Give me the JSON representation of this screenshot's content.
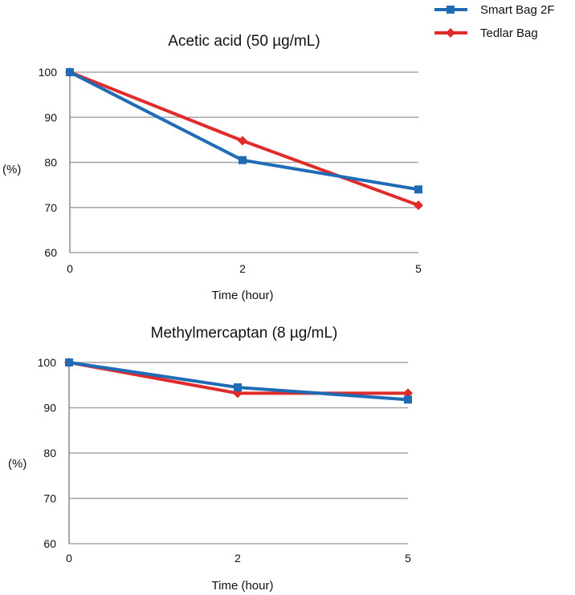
{
  "legend": {
    "items": [
      {
        "name": "Smart Bag 2F",
        "color": "#1f6bb5",
        "marker": "square"
      },
      {
        "name": "Tedlar Bag",
        "color": "#e02b2b",
        "marker": "diamond"
      }
    ],
    "placement": "top-right"
  },
  "chart_data": [
    {
      "type": "line",
      "title": "Acetic acid (50 µg/mL)",
      "xlabel": "Time (hour)",
      "ylabel": "(%)",
      "categories": [
        "0",
        "2",
        "5"
      ],
      "yticks": [
        "60",
        "70",
        "80",
        "90",
        "100"
      ],
      "ylim": [
        60,
        100
      ],
      "grid": true,
      "series": [
        {
          "name": "Smart Bag 2F",
          "color": "#1f6bb5",
          "marker": "square",
          "values": [
            100,
            80.5,
            74
          ]
        },
        {
          "name": "Tedlar Bag",
          "color": "#e02b2b",
          "marker": "diamond",
          "values": [
            100,
            84.8,
            70.5
          ]
        }
      ]
    },
    {
      "type": "line",
      "title": "Methylmercaptan (8 µg/mL)",
      "xlabel": "Time (hour)",
      "ylabel": "(%)",
      "categories": [
        "0",
        "2",
        "5"
      ],
      "yticks": [
        "60",
        "70",
        "80",
        "90",
        "100"
      ],
      "ylim": [
        60,
        100
      ],
      "grid": true,
      "series": [
        {
          "name": "Smart Bag 2F",
          "color": "#1f6bb5",
          "marker": "square",
          "values": [
            100,
            94.5,
            91.8
          ]
        },
        {
          "name": "Tedlar Bag",
          "color": "#e02b2b",
          "marker": "diamond",
          "values": [
            100,
            93.2,
            93.2
          ]
        }
      ]
    }
  ]
}
